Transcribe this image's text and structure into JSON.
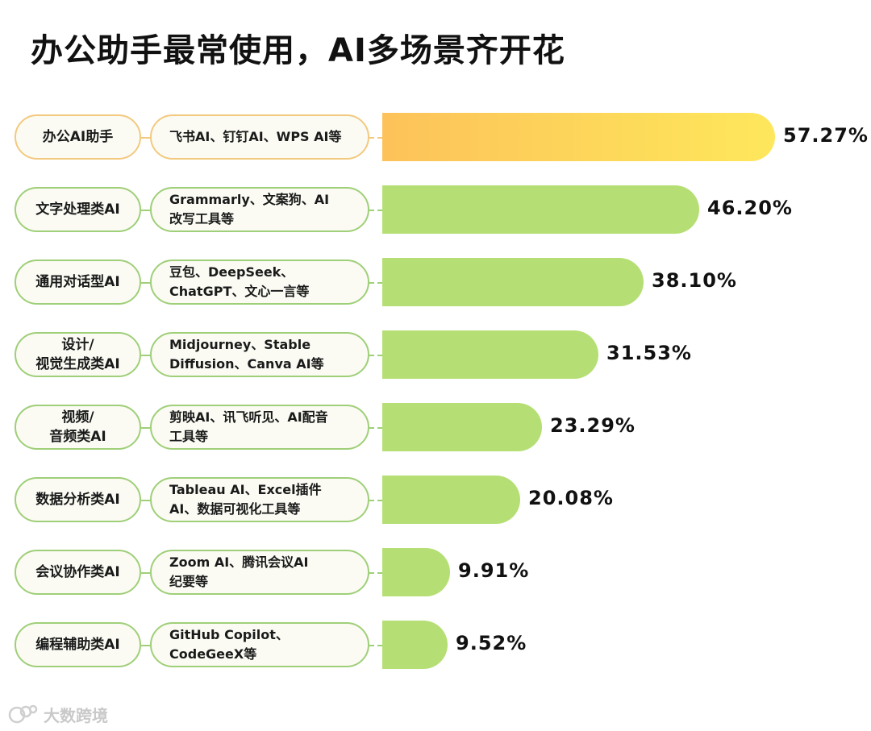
{
  "title": "办公助手最常使用，AI多场景齐开花",
  "brand": {
    "highlight_color": "#fdd35a",
    "bar_color": "#b5df74",
    "border_color": "#9fcf78"
  },
  "logo": {
    "icon": "bubble-logo-icon",
    "text": "大数跨境"
  },
  "chart_data": {
    "type": "bar",
    "orientation": "horizontal",
    "title": "办公助手最常使用，AI多场景齐开花",
    "xlim": [
      0,
      100
    ],
    "categories": [
      "办公AI助手",
      "文字处理类AI",
      "通用对话型AI",
      "设计/视觉生成类AI",
      "视频/音频类AI",
      "数据分析类AI",
      "会议协作类AI",
      "编程辅助类AI"
    ],
    "values": [
      57.27,
      46.2,
      38.1,
      31.53,
      23.29,
      20.08,
      9.91,
      9.52
    ],
    "unit": "%",
    "rows": [
      {
        "cat": [
          "办公AI助手"
        ],
        "tools": [
          "飞书AI、钉钉AI、WPS AI等"
        ],
        "value": 57.27,
        "label": "57.27%",
        "highlight": true
      },
      {
        "cat": [
          "文字处理类AI"
        ],
        "tools": [
          "Grammarly、文案狗、AI",
          "改写工具等"
        ],
        "value": 46.2,
        "label": "46.20%",
        "highlight": false
      },
      {
        "cat": [
          "通用对话型AI"
        ],
        "tools": [
          "豆包、DeepSeek、",
          "ChatGPT、文心一言等"
        ],
        "value": 38.1,
        "label": "38.10%",
        "highlight": false
      },
      {
        "cat": [
          "设计/",
          "视觉生成类AI"
        ],
        "tools": [
          "Midjourney、Stable",
          "Diffusion、Canva AI等"
        ],
        "value": 31.53,
        "label": "31.53%",
        "highlight": false
      },
      {
        "cat": [
          "视频/",
          "音频类AI"
        ],
        "tools": [
          "剪映AI、讯飞听见、AI配音",
          "工具等"
        ],
        "value": 23.29,
        "label": "23.29%",
        "highlight": false
      },
      {
        "cat": [
          "数据分析类AI"
        ],
        "tools": [
          "Tableau AI、Excel插件",
          "AI、数据可视化工具等"
        ],
        "value": 20.08,
        "label": "20.08%",
        "highlight": false
      },
      {
        "cat": [
          "会议协作类AI"
        ],
        "tools": [
          "Zoom AI、腾讯会议AI",
          "纪要等"
        ],
        "value": 9.91,
        "label": "9.91%",
        "highlight": false
      },
      {
        "cat": [
          "编程辅助类AI"
        ],
        "tools": [
          "GitHub Copilot、",
          "CodeGeeX等"
        ],
        "value": 9.52,
        "label": "9.52%",
        "highlight": false
      }
    ]
  }
}
